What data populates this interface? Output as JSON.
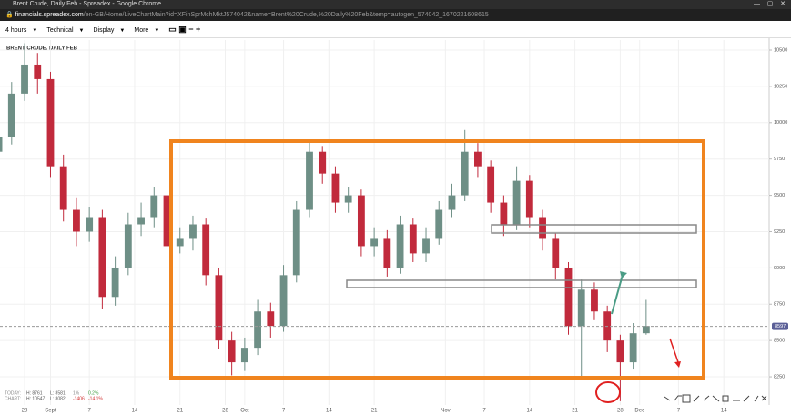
{
  "browser": {
    "window_title": "Brent Crude, Daily Feb - Spreadex - Google Chrome",
    "url_host": "financials.spreadex.com",
    "url_path": "/en-GB/Home/LiveChartMain?id=XFinSprMchMktJ574042&name=Brent%20Crude,%20Daily%20Feb&temp=autogen_574042_1670221608615"
  },
  "toolbar": {
    "items": [
      "4 hours",
      "Technical",
      "Display",
      "More"
    ]
  },
  "info": {
    "rows": [
      [
        "TODAY:",
        "H: 8761",
        "L: 8581",
        "1%",
        "0.2%"
      ],
      [
        "CHART:",
        "H: 10547",
        "L: 8082",
        "-1406",
        "-14.1%"
      ]
    ]
  },
  "chart_data": {
    "type": "candlestick",
    "title": "BRENT CRUDE, DAILY FEB",
    "x": [
      -4,
      -2,
      0,
      2,
      4,
      6,
      8,
      10,
      12,
      14,
      16,
      18,
      20,
      22,
      24,
      26,
      28,
      30,
      32,
      34,
      36,
      38,
      40,
      42,
      44,
      46,
      48,
      50,
      52,
      54,
      56,
      58,
      60,
      62,
      64,
      66,
      68,
      70,
      72,
      74,
      76,
      78,
      80,
      82,
      84,
      86,
      88,
      90,
      92,
      94,
      96
    ],
    "open": [
      9800,
      9900,
      10200,
      10400,
      10300,
      9700,
      9400,
      9250,
      9350,
      8800,
      9000,
      9300,
      9350,
      9500,
      9150,
      9200,
      9300,
      8950,
      8500,
      8350,
      8450,
      8700,
      8600,
      8950,
      9400,
      9800,
      9650,
      9450,
      9500,
      9150,
      9200,
      9000,
      9300,
      9100,
      9200,
      9400,
      9500,
      9800,
      9700,
      9450,
      9300,
      9600,
      9350,
      9200,
      9000,
      8600,
      8850,
      8700,
      8500,
      8350,
      8550
    ],
    "high": [
      9980,
      10280,
      10547,
      10480,
      10350,
      9780,
      9480,
      9420,
      9400,
      9080,
      9380,
      9450,
      9560,
      9540,
      9280,
      9360,
      9340,
      9000,
      8560,
      8520,
      8780,
      8760,
      9020,
      9460,
      9870,
      9840,
      9700,
      9560,
      9540,
      9280,
      9260,
      9360,
      9340,
      9280,
      9460,
      9580,
      9950,
      9860,
      9740,
      9500,
      9700,
      9640,
      9400,
      9240,
      9040,
      8920,
      8900,
      8740,
      8540,
      8620,
      8780
    ],
    "low": [
      9720,
      9850,
      10150,
      10200,
      9620,
      9320,
      9150,
      9180,
      8720,
      8740,
      8950,
      9220,
      9280,
      9080,
      9100,
      9120,
      8880,
      8440,
      8260,
      8290,
      8400,
      8520,
      8560,
      8900,
      9350,
      9580,
      9380,
      9380,
      9080,
      9080,
      8940,
      8960,
      9040,
      9040,
      9160,
      9350,
      9460,
      9620,
      9380,
      9220,
      9260,
      9280,
      9120,
      8920,
      8540,
      8250,
      8640,
      8420,
      8082,
      8300,
      8540
    ],
    "close": [
      9900,
      10200,
      10400,
      10300,
      9700,
      9400,
      9250,
      9350,
      8800,
      9000,
      9300,
      9350,
      9500,
      9150,
      9200,
      9300,
      8950,
      8500,
      8350,
      8450,
      8700,
      8600,
      8950,
      9400,
      9800,
      9650,
      9450,
      9500,
      9150,
      9200,
      9000,
      9300,
      9100,
      9200,
      9400,
      9500,
      9800,
      9700,
      9450,
      9300,
      9600,
      9350,
      9200,
      9000,
      8600,
      8850,
      8700,
      8500,
      8350,
      8550,
      8600
    ],
    "up_color": "#6e8f86",
    "down_color": "#c12a3c",
    "xlim": [
      -3.8,
      115
    ],
    "ylim": [
      8056,
      10569
    ],
    "yticks": [
      8250,
      8500,
      8750,
      9000,
      9250,
      9500,
      9750,
      10000,
      10250,
      10500
    ],
    "xticks": [
      {
        "value": 0,
        "label": "28"
      },
      {
        "value": 4,
        "label": "Sept"
      },
      {
        "value": 10,
        "label": "7"
      },
      {
        "value": 17,
        "label": "14"
      },
      {
        "value": 24,
        "label": "21"
      },
      {
        "value": 31,
        "label": "28"
      },
      {
        "value": 34,
        "label": "Oct"
      },
      {
        "value": 40,
        "label": "7"
      },
      {
        "value": 47,
        "label": "14"
      },
      {
        "value": 54,
        "label": "21"
      },
      {
        "value": 65,
        "label": "Nov"
      },
      {
        "value": 71,
        "label": "7"
      },
      {
        "value": 78,
        "label": "14"
      },
      {
        "value": 85,
        "label": "21"
      },
      {
        "value": 92,
        "label": "28"
      },
      {
        "value": 95,
        "label": "Dec"
      },
      {
        "value": 101,
        "label": "7"
      },
      {
        "value": 108,
        "label": "14"
      }
    ],
    "last_price": 8597,
    "grid": true
  }
}
